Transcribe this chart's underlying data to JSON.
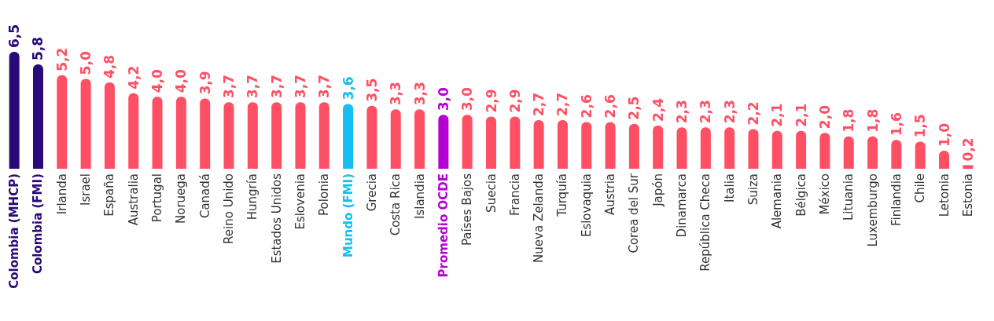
{
  "chart_data": {
    "type": "bar",
    "categories": [
      "Colombia (MHCP)",
      "Colombia (FMI)",
      "Irlanda",
      "Israel",
      "España",
      "Australia",
      "Portugal",
      "Noruega",
      "Canadá",
      "Reino Unido",
      "Hungría",
      "Estados Unidos",
      "Eslovenia",
      "Polonia",
      "Mundo (FMI)",
      "Grecia",
      "Costa Rica",
      "Islandia",
      "Promedio OCDE",
      "Países Bajos",
      "Suecia",
      "Francia",
      "Nueva Zelanda",
      "Turquía",
      "Eslovaquia",
      "Austria",
      "Corea del Sur",
      "Japón",
      "Dinamarca",
      "República Checa",
      "Italia",
      "Suiza",
      "Alemania",
      "Bélgica",
      "México",
      "Lituania",
      "Luxemburgo",
      "Finlandia",
      "Chile",
      "Letonia",
      "Estonia"
    ],
    "values": [
      6.5,
      5.8,
      5.2,
      5.0,
      4.8,
      4.2,
      4.0,
      4.0,
      3.9,
      3.7,
      3.7,
      3.7,
      3.7,
      3.7,
      3.6,
      3.5,
      3.3,
      3.3,
      3.0,
      3.0,
      2.9,
      2.9,
      2.7,
      2.7,
      2.6,
      2.6,
      2.5,
      2.4,
      2.3,
      2.3,
      2.3,
      2.2,
      2.1,
      2.1,
      2.0,
      1.8,
      1.8,
      1.6,
      1.5,
      1.0,
      0.2
    ],
    "value_labels": [
      "6,5",
      "5,8",
      "5,2",
      "5,0",
      "4,8",
      "4,2",
      "4,0",
      "4,0",
      "3,9",
      "3,7",
      "3,7",
      "3,7",
      "3,7",
      "3,7",
      "3,6",
      "3,5",
      "3,3",
      "3,3",
      "3,0",
      "3,0",
      "2,9",
      "2,9",
      "2,7",
      "2,7",
      "2,6",
      "2,6",
      "2,5",
      "2,4",
      "2,3",
      "2,3",
      "2,3",
      "2,2",
      "2,1",
      "2,1",
      "2,0",
      "1,8",
      "1,8",
      "1,6",
      "1,5",
      "1,0",
      "0,2"
    ],
    "colors": [
      "#2a0a78",
      "#2a0a78",
      "#ff4f64",
      "#ff4f64",
      "#ff4f64",
      "#ff4f64",
      "#ff4f64",
      "#ff4f64",
      "#ff4f64",
      "#ff4f64",
      "#ff4f64",
      "#ff4f64",
      "#ff4f64",
      "#ff4f64",
      "#16bff0",
      "#ff4f64",
      "#ff4f64",
      "#ff4f64",
      "#b400d2",
      "#ff4f64",
      "#ff4f64",
      "#ff4f64",
      "#ff4f64",
      "#ff4f64",
      "#ff4f64",
      "#ff4f64",
      "#ff4f64",
      "#ff4f64",
      "#ff4f64",
      "#ff4f64",
      "#ff4f64",
      "#ff4f64",
      "#ff4f64",
      "#ff4f64",
      "#ff4f64",
      "#ff4f64",
      "#ff4f64",
      "#ff4f64",
      "#ff4f64",
      "#ff4f64",
      "#ff4f64"
    ],
    "orientation": "vertical"
  }
}
